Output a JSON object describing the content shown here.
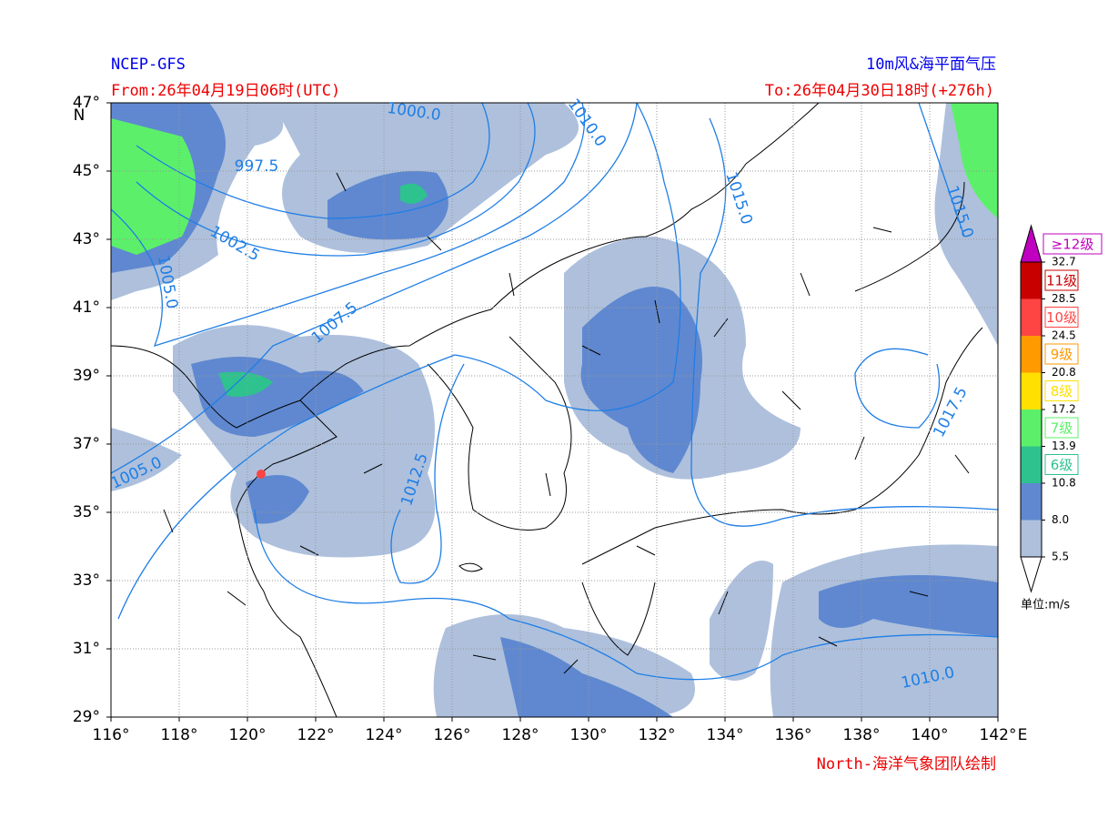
{
  "header": {
    "source": "NCEP-GFS",
    "from": "From:26年04月19日06时(UTC)",
    "product": "10m风&海平面气压",
    "to": "To:26年04月30日18时(+276h)"
  },
  "footer": "North-海洋气象团队绘制",
  "map": {
    "xlim": [
      116,
      142
    ],
    "ylim": [
      29,
      47
    ],
    "xticks": [
      {
        "value": 116,
        "label": "116°"
      },
      {
        "value": 118,
        "label": "118°"
      },
      {
        "value": 120,
        "label": "120°"
      },
      {
        "value": 122,
        "label": "122°"
      },
      {
        "value": 124,
        "label": "124°"
      },
      {
        "value": 126,
        "label": "126°"
      },
      {
        "value": 128,
        "label": "128°"
      },
      {
        "value": 130,
        "label": "130°"
      },
      {
        "value": 132,
        "label": "132°"
      },
      {
        "value": 134,
        "label": "134°"
      },
      {
        "value": 136,
        "label": "136°"
      },
      {
        "value": 138,
        "label": "138°"
      },
      {
        "value": 140,
        "label": "140°"
      },
      {
        "value": 142,
        "label": "142°"
      }
    ],
    "yticks": [
      {
        "value": 29,
        "label": "29°"
      },
      {
        "value": 31,
        "label": "31°"
      },
      {
        "value": 33,
        "label": "33°"
      },
      {
        "value": 35,
        "label": "35°"
      },
      {
        "value": 37,
        "label": "37°"
      },
      {
        "value": 39,
        "label": "39°"
      },
      {
        "value": 41,
        "label": "41°"
      },
      {
        "value": 43,
        "label": "43°"
      },
      {
        "value": 45,
        "label": "45°"
      },
      {
        "value": 47,
        "label": "47°"
      }
    ],
    "x_unit": "E",
    "y_unit": "N",
    "grid": true,
    "isobar_labels": [
      "997.5",
      "1000.0",
      "1002.5",
      "1005.0",
      "1005.0",
      "1007.5",
      "1010.0",
      "1010.0",
      "1012.5",
      "1015.0",
      "1015.0",
      "1017.5"
    ]
  },
  "legend": {
    "levels": [
      "5.5",
      "8.0",
      "10.8",
      "13.9",
      "17.2",
      "20.8",
      "24.5",
      "28.5",
      "32.7"
    ],
    "bands": [
      {
        "color": "#aec0dc"
      },
      {
        "color": "#5f88d0"
      },
      {
        "color": "#2ec28e",
        "grade": "6级"
      },
      {
        "color": "#5cf06a",
        "grade": "7级"
      },
      {
        "color": "#ffe000",
        "grade": "8级"
      },
      {
        "color": "#ff9a00",
        "grade": "9级"
      },
      {
        "color": "#ff4444",
        "grade": "10级"
      },
      {
        "color": "#c80000",
        "grade": "11级"
      }
    ],
    "top": {
      "color": "#c000c0",
      "grade": "≥12级"
    },
    "unit": "单位:m/s"
  }
}
